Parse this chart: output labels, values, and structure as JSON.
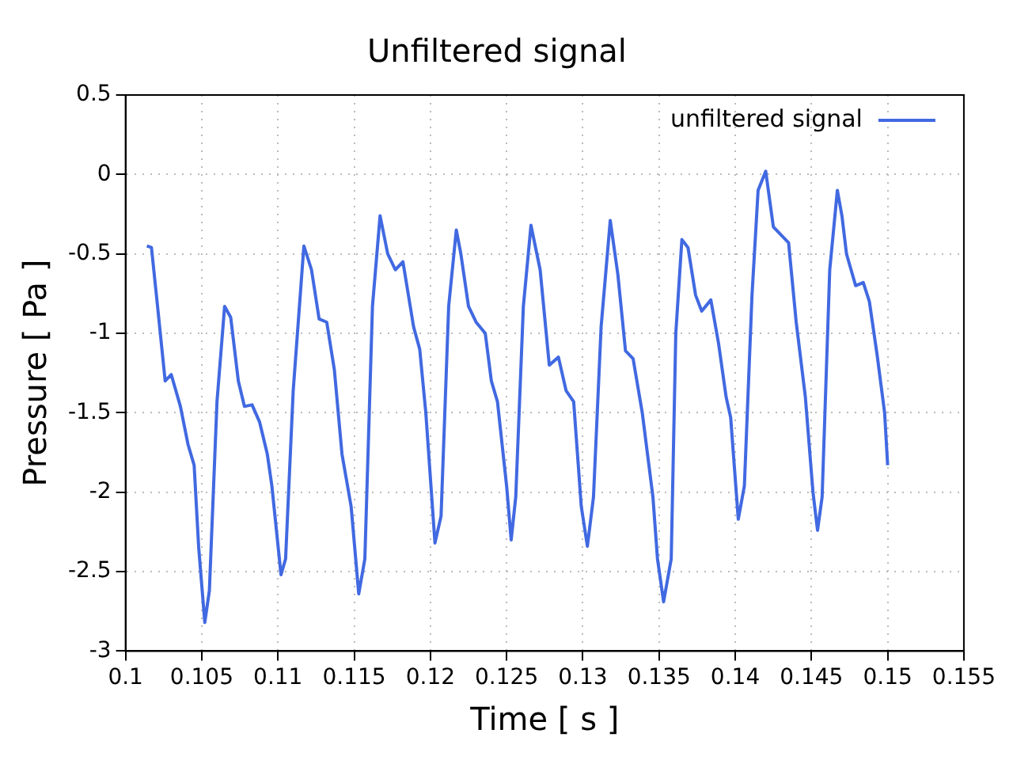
{
  "chart_data": {
    "type": "line",
    "title": "Unfiltered signal",
    "xlabel": "Time [ s ]",
    "ylabel": "Pressure [ Pa ]",
    "xlim": [
      0.1,
      0.155
    ],
    "xticks": [
      0.1,
      0.105,
      0.11,
      0.115,
      0.12,
      0.125,
      0.13,
      0.135,
      0.14,
      0.145,
      0.15,
      0.155
    ],
    "ylim": [
      -3,
      0.5
    ],
    "yticks": [
      -3,
      -2.5,
      -2,
      -1.5,
      -1,
      -0.5,
      0,
      0.5
    ],
    "grid": true,
    "legend": "top right",
    "marker": "none",
    "line_style": "solid",
    "series": [
      {
        "name": "unfiltered signal",
        "color": "#4169e1",
        "x": [
          0.1014,
          0.1017,
          0.1021,
          0.1026,
          0.103,
          0.1036,
          0.1041,
          0.1045,
          0.1048,
          0.1052,
          0.1055,
          0.106,
          0.1065,
          0.1069,
          0.1074,
          0.1078,
          0.1083,
          0.1088,
          0.1093,
          0.1096,
          0.1102,
          0.1105,
          0.111,
          0.1117,
          0.1122,
          0.1127,
          0.1132,
          0.1137,
          0.1142,
          0.1148,
          0.1153,
          0.1157,
          0.1162,
          0.1167,
          0.1172,
          0.1177,
          0.1182,
          0.1189,
          0.1193,
          0.1197,
          0.1203,
          0.1207,
          0.1212,
          0.1217,
          0.122,
          0.1225,
          0.123,
          0.1236,
          0.124,
          0.1244,
          0.125,
          0.1253,
          0.1256,
          0.1261,
          0.1266,
          0.1272,
          0.1278,
          0.1284,
          0.1289,
          0.1294,
          0.1299,
          0.1303,
          0.1307,
          0.1312,
          0.1318,
          0.1323,
          0.1328,
          0.1333,
          0.1339,
          0.1346,
          0.1349,
          0.1353,
          0.1358,
          0.1361,
          0.1365,
          0.1369,
          0.1374,
          0.1378,
          0.1384,
          0.1389,
          0.1394,
          0.1397,
          0.1402,
          0.1406,
          0.1411,
          0.1415,
          0.142,
          0.1425,
          0.143,
          0.1435,
          0.144,
          0.1446,
          0.1451,
          0.1454,
          0.1457,
          0.1462,
          0.1467,
          0.147,
          0.1473,
          0.1479,
          0.1484,
          0.1488,
          0.1493,
          0.1498,
          0.15
        ],
        "values": [
          -0.45,
          -0.46,
          -0.83,
          -1.3,
          -1.26,
          -1.46,
          -1.7,
          -1.83,
          -2.35,
          -2.82,
          -2.62,
          -1.43,
          -0.83,
          -0.9,
          -1.3,
          -1.46,
          -1.45,
          -1.56,
          -1.76,
          -1.96,
          -2.52,
          -2.42,
          -1.36,
          -0.45,
          -0.6,
          -0.91,
          -0.93,
          -1.23,
          -1.76,
          -2.09,
          -2.64,
          -2.42,
          -0.83,
          -0.26,
          -0.5,
          -0.6,
          -0.55,
          -0.96,
          -1.1,
          -1.5,
          -2.32,
          -2.15,
          -0.83,
          -0.35,
          -0.5,
          -0.83,
          -0.93,
          -1,
          -1.3,
          -1.43,
          -1.96,
          -2.3,
          -2.03,
          -0.83,
          -0.32,
          -0.6,
          -1.2,
          -1.15,
          -1.36,
          -1.43,
          -2.09,
          -2.34,
          -2.03,
          -0.96,
          -0.29,
          -0.63,
          -1.11,
          -1.16,
          -1.5,
          -2.03,
          -2.42,
          -2.69,
          -2.42,
          -1,
          -0.41,
          -0.46,
          -0.76,
          -0.86,
          -0.79,
          -1.06,
          -1.4,
          -1.53,
          -2.17,
          -1.96,
          -0.76,
          -0.1,
          0.02,
          -0.33,
          -0.38,
          -0.43,
          -0.93,
          -1.4,
          -2,
          -2.24,
          -2.03,
          -0.6,
          -0.1,
          -0.26,
          -0.5,
          -0.7,
          -0.68,
          -0.8,
          -1.13,
          -1.5,
          -1.83
        ]
      }
    ]
  }
}
